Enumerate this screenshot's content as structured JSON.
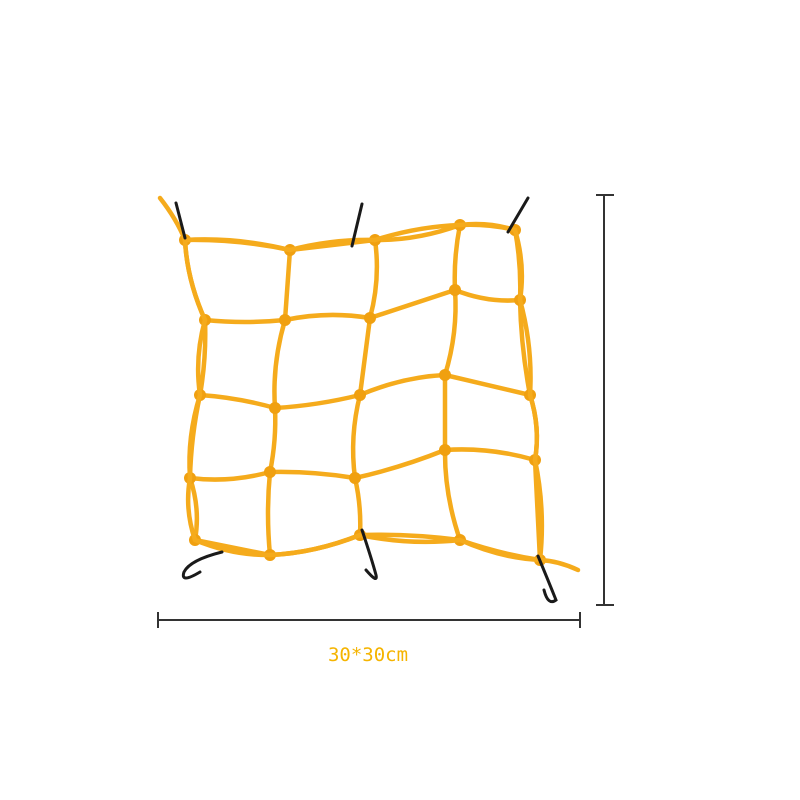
{
  "product": {
    "dimension_label": "30*30cm",
    "net_color": "#f5ab1c",
    "hook_color": "#1a1a1a",
    "dimension_line_color": "#333333",
    "label_color": "#f5b400"
  }
}
